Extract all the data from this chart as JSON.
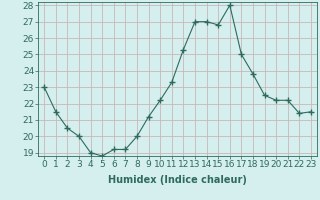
{
  "x": [
    0,
    1,
    2,
    3,
    4,
    5,
    6,
    7,
    8,
    9,
    10,
    11,
    12,
    13,
    14,
    15,
    16,
    17,
    18,
    19,
    20,
    21,
    22,
    23
  ],
  "y": [
    23.0,
    21.5,
    20.5,
    20.0,
    19.0,
    18.8,
    19.2,
    19.2,
    20.0,
    21.2,
    22.2,
    23.3,
    25.3,
    27.0,
    27.0,
    26.8,
    28.0,
    25.0,
    23.8,
    22.5,
    22.2,
    22.2,
    21.4,
    21.5
  ],
  "line_color": "#2e6b5e",
  "marker": "+",
  "marker_size": 4,
  "bg_color": "#d5eeee",
  "grid_color": "#c8b8b8",
  "xlabel": "Humidex (Indice chaleur)",
  "ylim_min": 18.8,
  "ylim_max": 28.2,
  "yticks": [
    19,
    20,
    21,
    22,
    23,
    24,
    25,
    26,
    27,
    28
  ],
  "xticks": [
    0,
    1,
    2,
    3,
    4,
    5,
    6,
    7,
    8,
    9,
    10,
    11,
    12,
    13,
    14,
    15,
    16,
    17,
    18,
    19,
    20,
    21,
    22,
    23
  ],
  "label_fontsize": 7,
  "tick_fontsize": 6.5
}
